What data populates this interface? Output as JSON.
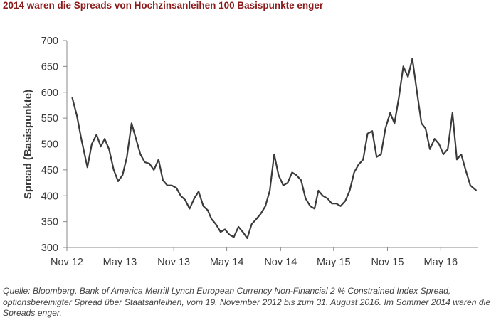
{
  "title": "2014 waren die Spreads von Hochzinsanleihen 100 Basispunkte enger",
  "source_note": "Quelle: Bloomberg, Bank of America Merrill Lynch European Currency Non-Financial 2 % Constrained Index Spread, optionsbereinigter Spread über Staatsanleihen, vom 19. November 2012 bis zum 31. August 2016. Im Sommer 2014 waren die Spreads enger.",
  "colors": {
    "title": "#8b1a1a",
    "line": "#3a3a3a",
    "axis": "#555555"
  },
  "chart_data": {
    "type": "line",
    "title": "",
    "ylabel": "Spread (Basispunkte)",
    "xlabel": "",
    "ylim": [
      300,
      700
    ],
    "yticks": [
      300,
      350,
      400,
      450,
      500,
      550,
      600,
      650,
      700
    ],
    "xticks": [
      "Nov 12",
      "May 13",
      "Nov 13",
      "May 14",
      "Nov 14",
      "May 15",
      "Nov 15",
      "May 16"
    ],
    "grid": false,
    "series": [
      {
        "name": "",
        "x": [
          "2012-11-19",
          "2012-12-05",
          "2012-12-20",
          "2013-01-10",
          "2013-01-25",
          "2013-02-10",
          "2013-02-25",
          "2013-03-10",
          "2013-03-25",
          "2013-04-10",
          "2013-04-25",
          "2013-05-10",
          "2013-05-25",
          "2013-06-10",
          "2013-06-25",
          "2013-07-10",
          "2013-07-25",
          "2013-08-10",
          "2013-08-25",
          "2013-09-10",
          "2013-09-25",
          "2013-10-10",
          "2013-10-25",
          "2013-11-10",
          "2013-11-25",
          "2013-12-10",
          "2013-12-25",
          "2014-01-10",
          "2014-01-25",
          "2014-02-10",
          "2014-02-25",
          "2014-03-10",
          "2014-03-25",
          "2014-04-10",
          "2014-04-25",
          "2014-05-10",
          "2014-05-25",
          "2014-06-10",
          "2014-06-25",
          "2014-07-10",
          "2014-07-25",
          "2014-08-10",
          "2014-08-25",
          "2014-09-10",
          "2014-09-25",
          "2014-10-10",
          "2014-10-25",
          "2014-11-10",
          "2014-11-25",
          "2014-12-10",
          "2014-12-25",
          "2015-01-10",
          "2015-01-25",
          "2015-02-10",
          "2015-02-25",
          "2015-03-10",
          "2015-03-25",
          "2015-04-10",
          "2015-04-25",
          "2015-05-10",
          "2015-05-25",
          "2015-06-10",
          "2015-06-25",
          "2015-07-10",
          "2015-07-25",
          "2015-08-10",
          "2015-08-25",
          "2015-09-10",
          "2015-09-25",
          "2015-10-10",
          "2015-10-25",
          "2015-11-10",
          "2015-11-25",
          "2015-12-10",
          "2015-12-25",
          "2016-01-10",
          "2016-01-25",
          "2016-02-10",
          "2016-02-25",
          "2016-03-10",
          "2016-03-25",
          "2016-04-10",
          "2016-04-25",
          "2016-05-10",
          "2016-05-25",
          "2016-06-10",
          "2016-06-25",
          "2016-07-10",
          "2016-07-25",
          "2016-08-10",
          "2016-08-31"
        ],
        "values": [
          590,
          555,
          510,
          455,
          500,
          518,
          495,
          510,
          490,
          450,
          428,
          440,
          475,
          540,
          510,
          480,
          465,
          462,
          450,
          470,
          430,
          420,
          420,
          415,
          400,
          392,
          375,
          395,
          408,
          380,
          372,
          355,
          345,
          330,
          335,
          325,
          320,
          340,
          330,
          318,
          345,
          355,
          365,
          380,
          410,
          480,
          440,
          420,
          425,
          445,
          440,
          430,
          395,
          380,
          375,
          410,
          400,
          395,
          385,
          385,
          380,
          390,
          410,
          445,
          460,
          470,
          520,
          525,
          475,
          480,
          530,
          560,
          540,
          590,
          650,
          630,
          665,
          600,
          540,
          530,
          490,
          510,
          500,
          480,
          490,
          560,
          470,
          480,
          450,
          420,
          410
        ]
      }
    ]
  }
}
